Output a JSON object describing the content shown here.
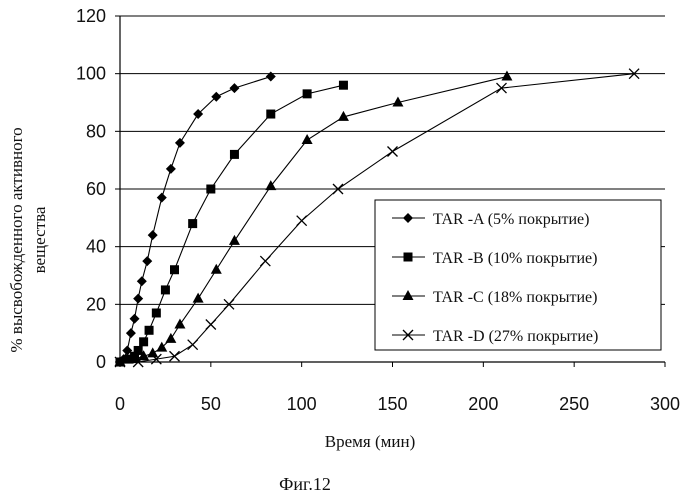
{
  "chart_data": {
    "type": "line",
    "xlabel": "Время (мин)",
    "ylabel_line1": "% высвобожденного активного",
    "ylabel_line2": "вещества",
    "caption": "Фиг.12",
    "xlim": [
      0,
      300
    ],
    "ylim": [
      0,
      120
    ],
    "x_ticks": [
      0,
      50,
      100,
      150,
      200,
      250,
      300
    ],
    "y_ticks": [
      0,
      20,
      40,
      60,
      80,
      100,
      120
    ],
    "grid": "horizontal",
    "legend_position": "bottom-right",
    "series": [
      {
        "name": "TAR -A (5% покрытие)",
        "marker": "diamond",
        "points": [
          [
            0,
            0
          ],
          [
            2,
            1
          ],
          [
            4,
            4
          ],
          [
            6,
            10
          ],
          [
            8,
            15
          ],
          [
            10,
            22
          ],
          [
            12,
            28
          ],
          [
            15,
            35
          ],
          [
            18,
            44
          ],
          [
            23,
            57
          ],
          [
            28,
            67
          ],
          [
            33,
            76
          ],
          [
            43,
            86
          ],
          [
            53,
            92
          ],
          [
            63,
            95
          ],
          [
            83,
            99
          ]
        ]
      },
      {
        "name": "TAR -B (10% покрытие)",
        "marker": "square",
        "points": [
          [
            0,
            0
          ],
          [
            5,
            1
          ],
          [
            8,
            2
          ],
          [
            10,
            4
          ],
          [
            13,
            7
          ],
          [
            16,
            11
          ],
          [
            20,
            17
          ],
          [
            25,
            25
          ],
          [
            30,
            32
          ],
          [
            40,
            48
          ],
          [
            50,
            60
          ],
          [
            63,
            72
          ],
          [
            83,
            86
          ],
          [
            103,
            93
          ],
          [
            123,
            96
          ]
        ]
      },
      {
        "name": "TAR -C (18% покрытие)",
        "marker": "triangle",
        "points": [
          [
            0,
            0
          ],
          [
            8,
            1
          ],
          [
            13,
            2
          ],
          [
            18,
            3
          ],
          [
            23,
            5
          ],
          [
            28,
            8
          ],
          [
            33,
            13
          ],
          [
            43,
            22
          ],
          [
            53,
            32
          ],
          [
            63,
            42
          ],
          [
            83,
            61
          ],
          [
            103,
            77
          ],
          [
            123,
            85
          ],
          [
            153,
            90
          ],
          [
            213,
            99
          ]
        ]
      },
      {
        "name": "TAR -D (27% покрытие)",
        "marker": "x",
        "points": [
          [
            0,
            0
          ],
          [
            10,
            0
          ],
          [
            20,
            1
          ],
          [
            30,
            2
          ],
          [
            40,
            6
          ],
          [
            50,
            13
          ],
          [
            60,
            20
          ],
          [
            80,
            35
          ],
          [
            100,
            49
          ],
          [
            120,
            60
          ],
          [
            150,
            73
          ],
          [
            210,
            95
          ],
          [
            283,
            100
          ]
        ]
      }
    ]
  }
}
